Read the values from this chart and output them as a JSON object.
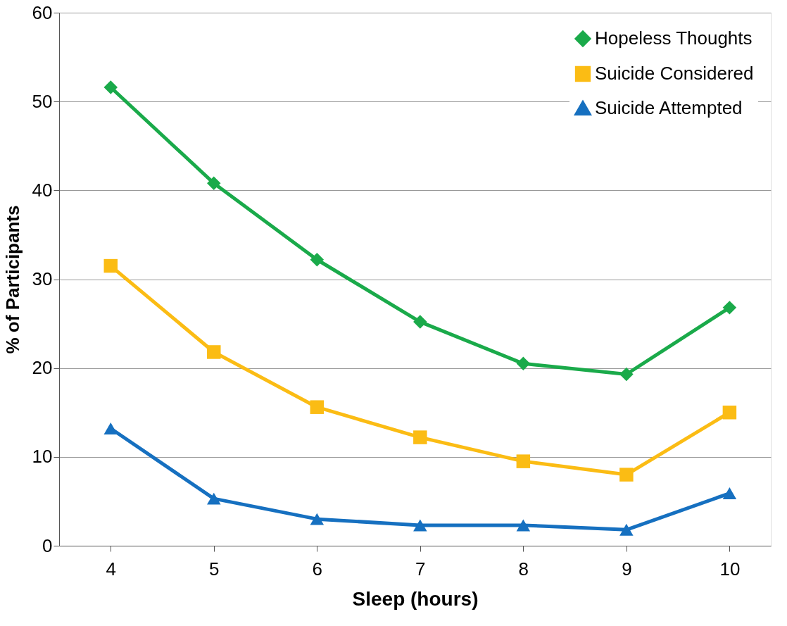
{
  "chart_data": {
    "type": "line",
    "xlabel": "Sleep (hours)",
    "ylabel": "% of Participants",
    "x": [
      4,
      5,
      6,
      7,
      8,
      9,
      10
    ],
    "series": [
      {
        "name": "Hopeless Thoughts",
        "color": "#1aaa4a",
        "marker": "diamond",
        "values": [
          51.6,
          40.8,
          32.2,
          25.2,
          20.5,
          19.3,
          26.8
        ]
      },
      {
        "name": "Suicide Considered",
        "color": "#fbbc14",
        "marker": "square",
        "values": [
          31.5,
          21.8,
          15.6,
          12.2,
          9.5,
          8.0,
          15.0
        ]
      },
      {
        "name": "Suicide Attempted",
        "color": "#1670c0",
        "marker": "triangle",
        "values": [
          13.2,
          5.3,
          3.0,
          2.3,
          2.3,
          1.8,
          5.9
        ]
      }
    ],
    "xlim": [
      3.5,
      10.4
    ],
    "xticks": [
      4,
      5,
      6,
      7,
      8,
      9,
      10
    ],
    "ylim": [
      0,
      60
    ],
    "yticks": [
      0,
      10,
      20,
      30,
      40,
      50,
      60
    ],
    "grid": "y",
    "legend": "top right",
    "line_style": "solid"
  }
}
